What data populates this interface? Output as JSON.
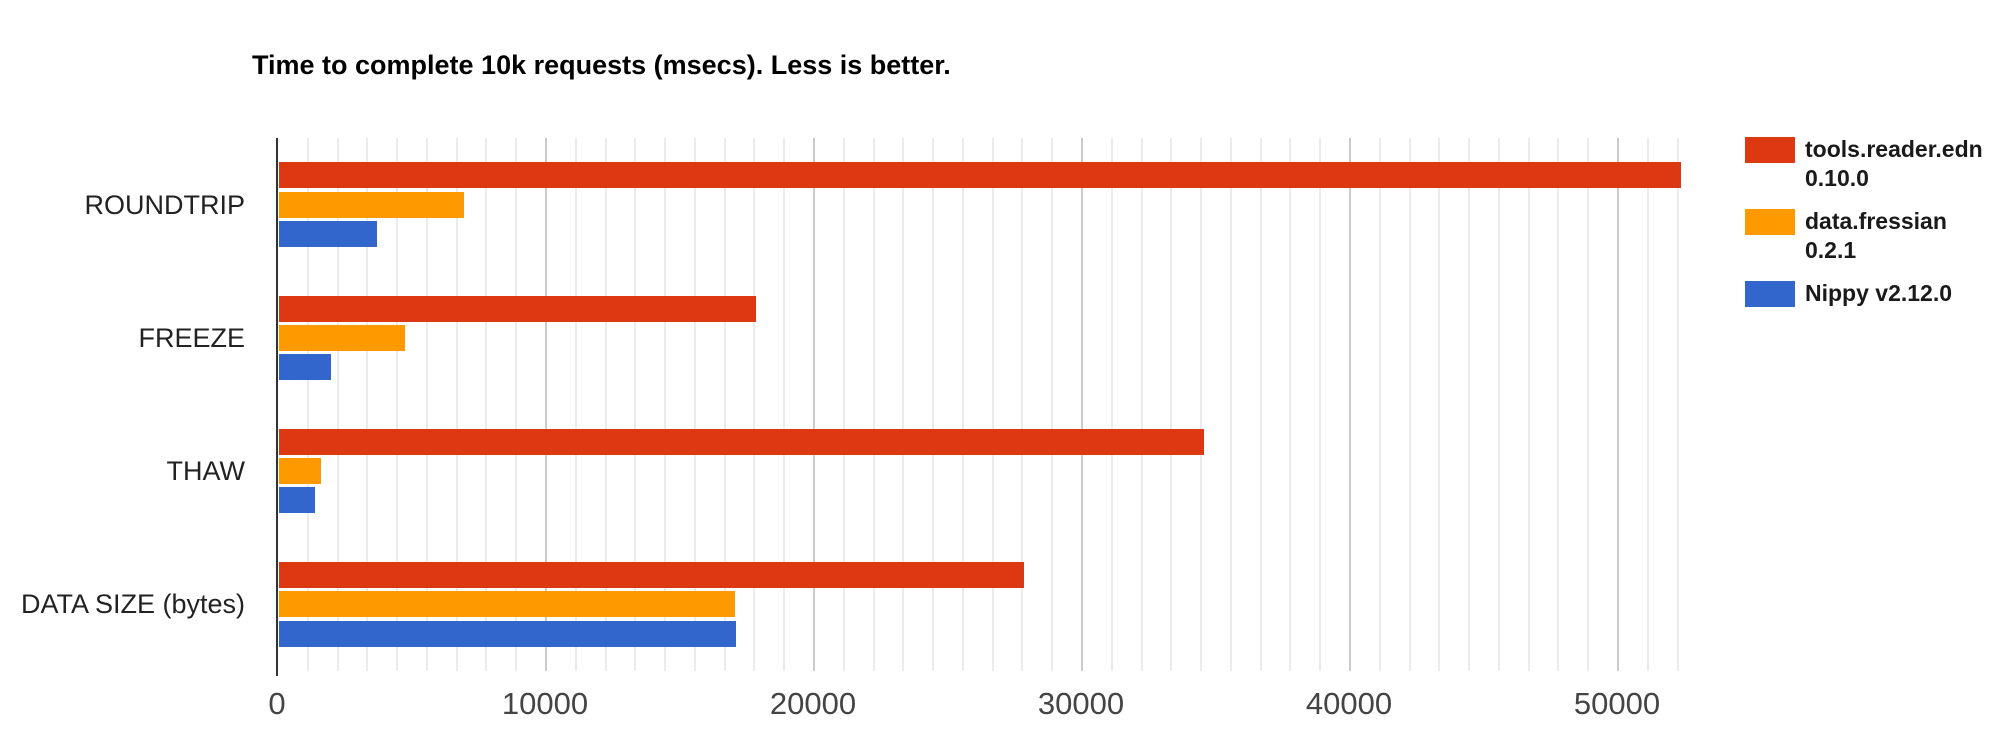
{
  "chart_data": {
    "type": "bar",
    "orientation": "horizontal",
    "title": "Time to complete 10k requests (msecs). Less is better.",
    "categories": [
      "ROUNDTRIP",
      "FREEZE",
      "THAW",
      "DATA SIZE (bytes)"
    ],
    "series": [
      {
        "name": "tools.reader.edn 0.10.0",
        "legend_lines": [
          "tools.reader.edn",
          "0.10.0"
        ],
        "color": "#DC3912",
        "values": [
          52300,
          17800,
          34500,
          27800
        ]
      },
      {
        "name": "data.fressian 0.2.1",
        "legend_lines": [
          "data.fressian",
          "0.2.1"
        ],
        "color": "#FF9900",
        "values": [
          6900,
          4700,
          1550,
          17000
        ]
      },
      {
        "name": "Nippy v2.12.0",
        "legend_lines": [
          "Nippy v2.12.0"
        ],
        "color": "#3366CC",
        "values": [
          3650,
          1950,
          1350,
          17050
        ]
      }
    ],
    "xlabel": "",
    "ylabel": "",
    "xlim": [
      0,
      52650
    ],
    "x_ticks": [
      0,
      10000,
      20000,
      30000,
      40000,
      50000
    ],
    "x_tick_labels": [
      "0",
      "10000",
      "20000",
      "30000",
      "40000",
      "50000"
    ],
    "grid": "vertical",
    "minor_gridline_step": 1111.11,
    "major_gridline_step": 10000,
    "legend_position": "right",
    "colors": {
      "background": "#FFFFFF",
      "axis_line": "#333333",
      "major_gridline": "#CCCCCC",
      "minor_gridline": "#EBEBEB",
      "tick_label": "#444444",
      "category_label": "#222222",
      "title": "#000000",
      "legend_text": "#1A1A1A"
    }
  }
}
